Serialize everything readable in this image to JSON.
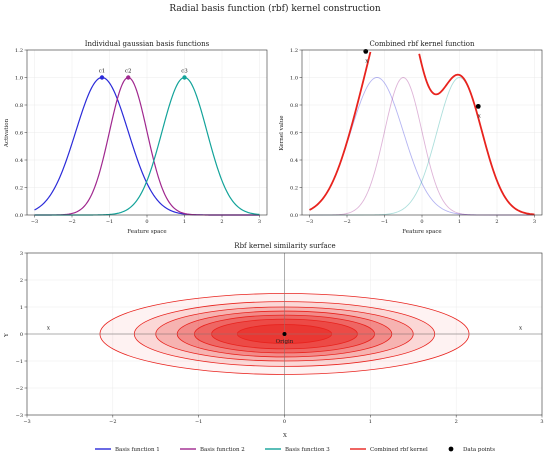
{
  "figure": {
    "title": "Radial basis function (rbf) kernel construction"
  },
  "colors": {
    "basis1": "#2b2bd9",
    "basis2": "#a0288f",
    "basis3": "#13a39a",
    "combined": "#e8231e",
    "points": "#000000"
  },
  "chart_data": [
    {
      "id": "individual",
      "type": "line",
      "title": "Individual gaussian basis functions",
      "xlabel": "Feature space",
      "ylabel": "Activation",
      "xlim": [
        -3.2,
        3.2
      ],
      "ylim": [
        0,
        1.2
      ],
      "xticks": [
        -3,
        -2,
        -1,
        0,
        1,
        2,
        3
      ],
      "yticks": [
        0.0,
        0.2,
        0.4,
        0.6,
        0.8,
        1.0,
        1.2
      ],
      "grid": true,
      "series": [
        {
          "name": "Basis function 1",
          "center": -1.2,
          "width": 0.7,
          "x_range": [
            -3,
            3
          ],
          "color_key": "basis1"
        },
        {
          "name": "Basis function 2",
          "center": -0.5,
          "width": 0.5,
          "x_range": [
            -3,
            3
          ],
          "color_key": "basis2"
        },
        {
          "name": "Basis function 3",
          "center": 1.0,
          "width": 0.6,
          "x_range": [
            -3,
            3
          ],
          "color_key": "basis3"
        }
      ],
      "center_labels": [
        {
          "text": "c1",
          "x": -1.2,
          "y": 1.0,
          "color_key": "basis1"
        },
        {
          "text": "c2",
          "x": -0.5,
          "y": 1.0,
          "color_key": "basis2"
        },
        {
          "text": "c3",
          "x": 1.0,
          "y": 1.0,
          "color_key": "basis3"
        }
      ]
    },
    {
      "id": "combined",
      "type": "line",
      "title": "Combined rbf kernel function",
      "xlabel": "Feature space",
      "ylabel": "Kernel value",
      "xlim": [
        -3.2,
        3.2
      ],
      "ylim": [
        0,
        1.2
      ],
      "xticks": [
        -3,
        -2,
        -1,
        0,
        1,
        2,
        3
      ],
      "yticks": [
        0.0,
        0.2,
        0.4,
        0.6,
        0.8,
        1.0,
        1.2
      ],
      "grid": true,
      "background_series": [
        {
          "center": -1.2,
          "width": 0.7,
          "color_key": "basis1"
        },
        {
          "center": -0.5,
          "width": 0.5,
          "color_key": "basis2"
        },
        {
          "center": 1.0,
          "width": 0.6,
          "color_key": "basis3"
        }
      ],
      "combined_series": {
        "name": "Combined rbf kernel",
        "components": [
          [
            -1.2,
            0.7
          ],
          [
            -0.5,
            0.5
          ],
          [
            1.0,
            0.6
          ]
        ],
        "x_range": [
          -3,
          3
        ],
        "color_key": "combined"
      },
      "data_points": [
        {
          "x": -1.5,
          "y": 1.19,
          "label": "x"
        },
        {
          "x": 1.5,
          "y": 0.79,
          "label": "x"
        }
      ]
    },
    {
      "id": "surface",
      "type": "contour",
      "title": "Rbf kernel similarity surface",
      "xlabel": "X",
      "ylabel": "Y",
      "xlim": [
        -3,
        3
      ],
      "ylim": [
        -3,
        3
      ],
      "xticks": [
        -3,
        -2,
        -1,
        0,
        1,
        2,
        3
      ],
      "yticks": [
        -3,
        -2,
        -1,
        0,
        1,
        2,
        3
      ],
      "grid": true,
      "contour_radii_x": [
        0.55,
        0.85,
        1.05,
        1.25,
        1.5,
        1.75,
        2.15
      ],
      "contour_radii_y": [
        0.35,
        0.55,
        0.7,
        0.85,
        1.0,
        1.2,
        1.5
      ],
      "origin": {
        "x": 0,
        "y": 0,
        "label": "Origin"
      },
      "side_markers": [
        {
          "x": -2.75,
          "y": 0.25,
          "label": "x"
        },
        {
          "x": 2.75,
          "y": 0.25,
          "label": "x"
        }
      ]
    }
  ],
  "legend": {
    "placement": "bottom",
    "items": [
      {
        "label": "Basis function 1",
        "kind": "line",
        "color_key": "basis1"
      },
      {
        "label": "Basis function 2",
        "kind": "line",
        "color_key": "basis2"
      },
      {
        "label": "Basis function 3",
        "kind": "line",
        "color_key": "basis3"
      },
      {
        "label": "Combined rbf kernel",
        "kind": "line",
        "color_key": "combined"
      },
      {
        "label": "Data points",
        "kind": "dot",
        "color_key": "points"
      }
    ]
  }
}
